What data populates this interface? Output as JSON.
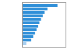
{
  "chart_data": {
    "type": "bar",
    "orientation": "horizontal",
    "categories": [
      null,
      null,
      null,
      null,
      null,
      null,
      null,
      null,
      null,
      null,
      null,
      null
    ],
    "values": [
      9.8,
      7.0,
      6.2,
      5.7,
      5.2,
      4.8,
      4.4,
      4.0,
      3.6,
      3.1,
      2.5,
      1.2
    ],
    "colors": [
      "#2f8fd8",
      "#2f8fd8",
      "#2f8fd8",
      "#2f8fd8",
      "#2f8fd8",
      "#2f8fd8",
      "#2f8fd8",
      "#2f8fd8",
      "#2f8fd8",
      "#2f8fd8",
      "#2f8fd8",
      "#a8cff0"
    ],
    "xlim": [
      0,
      12
    ],
    "tick_labels": false
  }
}
